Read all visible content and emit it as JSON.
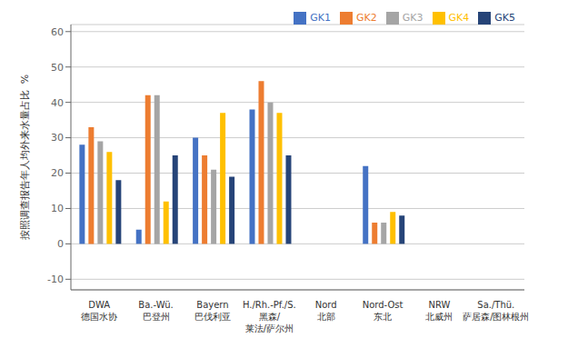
{
  "chart_data": {
    "type": "bar",
    "categories": [
      "DWA\n德国水协",
      "Ba.-Wü.\n巴登州",
      "Bayern\n巴伐利亚",
      "H./Rh.-Pf./S.\n黑森/\n莱法/萨尔州",
      "Nord\n北部",
      "Nord-Ost\n东北",
      "NRW\n北威州",
      "Sa./Thü.\n萨居森/图林根州"
    ],
    "series": [
      {
        "name": "GK1",
        "color": "#4472C4",
        "values": [
          28,
          4,
          30,
          38,
          null,
          22,
          null,
          null
        ]
      },
      {
        "name": "GK2",
        "color": "#ED7D31",
        "values": [
          33,
          42,
          25,
          46,
          null,
          6,
          null,
          null
        ]
      },
      {
        "name": "GK3",
        "color": "#A5A5A5",
        "values": [
          29,
          42,
          21,
          40,
          null,
          6,
          null,
          null
        ]
      },
      {
        "name": "GK4",
        "color": "#FFC000",
        "values": [
          26,
          12,
          37,
          37,
          null,
          9,
          null,
          null
        ]
      },
      {
        "name": "GK5",
        "color": "#264478",
        "values": [
          18,
          25,
          19,
          25,
          null,
          8,
          null,
          null
        ]
      }
    ],
    "ylabel": "按照调查报告年人均外来水量占比  %",
    "ylim": [
      -13,
      62
    ],
    "yticks": [
      -10,
      0,
      10,
      20,
      30,
      40,
      50,
      60
    ],
    "grid": true,
    "legend": "upper right"
  }
}
